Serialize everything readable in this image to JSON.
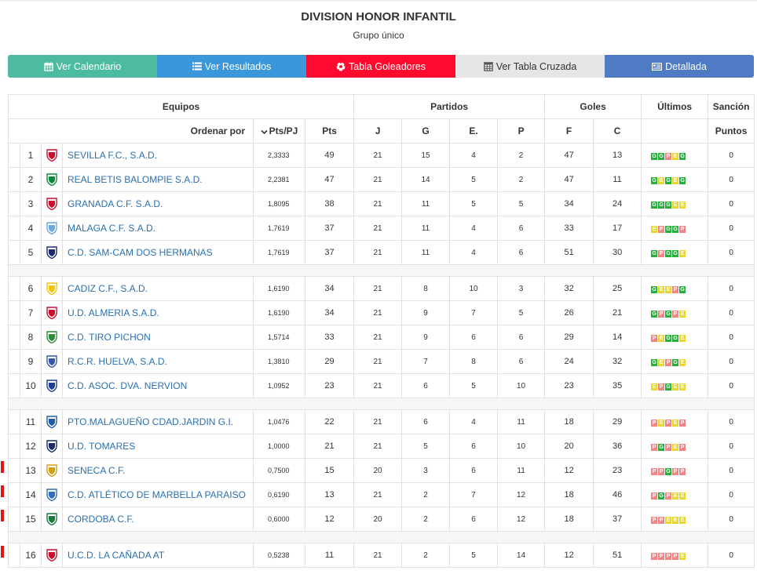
{
  "title": "DIVISION HONOR INFANTIL",
  "subtitle": "Grupo único",
  "buttons": [
    {
      "label": "Ver Calendario",
      "icon": "calendar-icon"
    },
    {
      "label": "Ver Resultados",
      "icon": "list-icon"
    },
    {
      "label": "Tabla Goleadores",
      "icon": "soccer-ball-icon"
    },
    {
      "label": "Ver Tabla Cruzada",
      "icon": "grid-table-icon"
    },
    {
      "label": "Detallada",
      "icon": "card-icon"
    }
  ],
  "header": {
    "equipos": "Equipos",
    "partidos": "Partidos",
    "goles": "Goles",
    "ultimos": "Últimos",
    "sancion": "Sanción",
    "ordenar": "Ordenar por",
    "ptspj": "Pts/PJ",
    "pts": "Pts",
    "j": "J",
    "g": "G",
    "e": "E.",
    "p": "P",
    "f": "F",
    "c": "C",
    "puntos": "Puntos"
  },
  "colors": {
    "win": "#27ae3c",
    "draw": "#e8d631",
    "loss": "#ef8585",
    "relegation_mark": "#e31414"
  },
  "teams": [
    {
      "pos": "1",
      "name": "SEVILLA F.C., S.A.D.",
      "ratio": "2,3333",
      "pts": "49",
      "j": "21",
      "g": "15",
      "e": "4",
      "p": "2",
      "f": "47",
      "c": "13",
      "last": [
        "G",
        "G",
        "P",
        "E",
        "G"
      ],
      "sancion": "0",
      "mark": false,
      "crest": "#c8102e"
    },
    {
      "pos": "2",
      "name": "REAL BETIS BALOMPIE S.A.D.",
      "ratio": "2,2381",
      "pts": "47",
      "j": "21",
      "g": "14",
      "e": "5",
      "p": "2",
      "f": "47",
      "c": "11",
      "last": [
        "G",
        "E",
        "G",
        "E",
        "G"
      ],
      "sancion": "0",
      "mark": false,
      "crest": "#0b8a3c"
    },
    {
      "pos": "3",
      "name": "GRANADA C.F. S.A.D.",
      "ratio": "1,8095",
      "pts": "38",
      "j": "21",
      "g": "11",
      "e": "5",
      "p": "5",
      "f": "34",
      "c": "24",
      "last": [
        "G",
        "G",
        "G",
        "E",
        "E"
      ],
      "sancion": "0",
      "mark": false,
      "crest": "#c8102e"
    },
    {
      "pos": "4",
      "name": "MALAGA C.F. S.A.D.",
      "ratio": "1,7619",
      "pts": "37",
      "j": "21",
      "g": "11",
      "e": "4",
      "p": "6",
      "f": "33",
      "c": "17",
      "last": [
        "E",
        "P",
        "G",
        "G",
        "P"
      ],
      "sancion": "0",
      "mark": false,
      "crest": "#6fa8dc"
    },
    {
      "pos": "5",
      "name": "C.D. SAM-CAM DOS HERMANAS",
      "ratio": "1,7619",
      "pts": "37",
      "j": "21",
      "g": "11",
      "e": "4",
      "p": "6",
      "f": "51",
      "c": "30",
      "last": [
        "G",
        "P",
        "G",
        "G",
        "E"
      ],
      "sancion": "0",
      "mark": false,
      "crest": "#1a2a6c"
    },
    {
      "pos": "6",
      "name": "CADIZ C.F., S.A.D.",
      "ratio": "1,6190",
      "pts": "34",
      "j": "21",
      "g": "8",
      "e": "10",
      "p": "3",
      "f": "32",
      "c": "25",
      "last": [
        "G",
        "E",
        "E",
        "P",
        "G"
      ],
      "sancion": "0",
      "mark": false,
      "crest": "#f1c40f"
    },
    {
      "pos": "7",
      "name": "U.D. ALMERIA S.A.D.",
      "ratio": "1,6190",
      "pts": "34",
      "j": "21",
      "g": "9",
      "e": "7",
      "p": "5",
      "f": "26",
      "c": "21",
      "last": [
        "G",
        "P",
        "G",
        "P",
        "E"
      ],
      "sancion": "0",
      "mark": false,
      "crest": "#c8102e"
    },
    {
      "pos": "8",
      "name": "C.D. TIRO PICHON",
      "ratio": "1,5714",
      "pts": "33",
      "j": "21",
      "g": "9",
      "e": "6",
      "p": "6",
      "f": "29",
      "c": "14",
      "last": [
        "P",
        "E",
        "G",
        "G",
        "E"
      ],
      "sancion": "0",
      "mark": false,
      "crest": "#2e8b3c"
    },
    {
      "pos": "9",
      "name": "R.C.R. HUELVA, S.A.D.",
      "ratio": "1,3810",
      "pts": "29",
      "j": "21",
      "g": "7",
      "e": "8",
      "p": "6",
      "f": "24",
      "c": "32",
      "last": [
        "G",
        "E",
        "P",
        "G",
        "E"
      ],
      "sancion": "0",
      "mark": false,
      "crest": "#3557a5"
    },
    {
      "pos": "10",
      "name": "C.D. ASOC. DVA. NERVION",
      "ratio": "1,0952",
      "pts": "23",
      "j": "21",
      "g": "6",
      "e": "5",
      "p": "10",
      "f": "23",
      "c": "35",
      "last": [
        "E",
        "P",
        "G",
        "E",
        "E"
      ],
      "sancion": "0",
      "mark": false,
      "crest": "#1c3f94"
    },
    {
      "pos": "11",
      "name": "PTO.MALAGUEÑO CDAD.JARDIN G.I.",
      "ratio": "1,0476",
      "pts": "22",
      "j": "21",
      "g": "6",
      "e": "4",
      "p": "11",
      "f": "18",
      "c": "29",
      "last": [
        "P",
        "E",
        "P",
        "E",
        "P"
      ],
      "sancion": "0",
      "mark": false,
      "crest": "#1e5aa8"
    },
    {
      "pos": "12",
      "name": "U.D. TOMARES",
      "ratio": "1,0000",
      "pts": "21",
      "j": "21",
      "g": "5",
      "e": "6",
      "p": "10",
      "f": "20",
      "c": "36",
      "last": [
        "P",
        "G",
        "P",
        "E",
        "P"
      ],
      "sancion": "0",
      "mark": false,
      "crest": "#1a2a6c"
    },
    {
      "pos": "13",
      "name": "SENECA C.F.",
      "ratio": "0,7500",
      "pts": "15",
      "j": "20",
      "g": "3",
      "e": "6",
      "p": "11",
      "f": "12",
      "c": "23",
      "last": [
        "P",
        "P",
        "G",
        "P",
        "P"
      ],
      "sancion": "0",
      "mark": true,
      "crest": "#d4a017"
    },
    {
      "pos": "14",
      "name": "C.D. ATLÉTICO DE MARBELLA PARAISO",
      "ratio": "0,6190",
      "pts": "13",
      "j": "21",
      "g": "2",
      "e": "7",
      "p": "12",
      "f": "18",
      "c": "46",
      "last": [
        "P",
        "G",
        "P",
        "E",
        "E"
      ],
      "sancion": "0",
      "mark": true,
      "crest": "#2e6fb8"
    },
    {
      "pos": "15",
      "name": "CORDOBA C.F.",
      "ratio": "0,6000",
      "pts": "12",
      "j": "20",
      "g": "2",
      "e": "6",
      "p": "12",
      "f": "18",
      "c": "37",
      "last": [
        "P",
        "P",
        "E",
        "E",
        "E"
      ],
      "sancion": "0",
      "mark": true,
      "crest": "#1c7a3c"
    },
    {
      "pos": "16",
      "name": "U.C.D. LA CAÑADA AT",
      "ratio": "0,5238",
      "pts": "11",
      "j": "21",
      "g": "2",
      "e": "5",
      "p": "14",
      "f": "12",
      "c": "51",
      "last": [
        "P",
        "P",
        "P",
        "P",
        "E"
      ],
      "sancion": "0",
      "mark": true,
      "crest": "#c8102e"
    }
  ]
}
